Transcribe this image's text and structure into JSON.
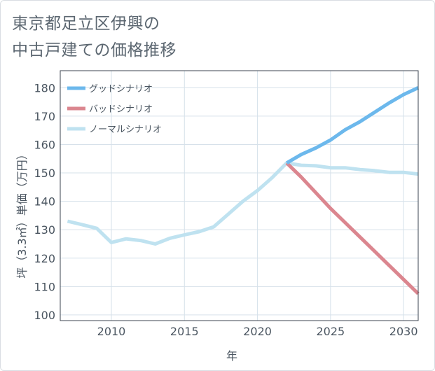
{
  "title_lines": [
    "東京都足立区伊興の",
    "中古戸建ての価格推移"
  ],
  "colors": {
    "good": "#6cb8ec",
    "bad": "#db868f",
    "normal": "#bfe2f0"
  },
  "chart_data": {
    "type": "line",
    "title": "東京都足立区伊興の中古戸建ての価格推移",
    "xlabel": "年",
    "ylabel": "坪（3.3㎡）単価（万円）",
    "xlim": [
      2006.5,
      2031
    ],
    "ylim": [
      98,
      186
    ],
    "xticks": [
      2010,
      2015,
      2020,
      2025,
      2030
    ],
    "yticks": [
      100,
      110,
      120,
      130,
      140,
      150,
      160,
      170,
      180
    ],
    "legend_position": "top-left",
    "series": [
      {
        "name": "グッドシナリオ",
        "key": "good",
        "x": [
          2022,
          2023,
          2024,
          2025,
          2026,
          2027,
          2028,
          2029,
          2030,
          2031
        ],
        "y": [
          153.5,
          156.5,
          158.8,
          161.6,
          165.2,
          168.0,
          171.3,
          174.6,
          177.6,
          180.0
        ]
      },
      {
        "name": "バッドシナリオ",
        "key": "bad",
        "x": [
          2022,
          2023,
          2024,
          2025,
          2026,
          2027,
          2028,
          2029,
          2030,
          2031
        ],
        "y": [
          153.5,
          148.5,
          143.0,
          137.5,
          132.5,
          127.5,
          122.5,
          117.5,
          112.5,
          107.5
        ]
      },
      {
        "name": "ノーマルシナリオ",
        "key": "normal",
        "x": [
          2007,
          2008,
          2009,
          2010,
          2011,
          2012,
          2013,
          2014,
          2015,
          2016,
          2017,
          2018,
          2019,
          2020,
          2021,
          2022,
          2023,
          2024,
          2025,
          2026,
          2027,
          2028,
          2029,
          2030,
          2031
        ],
        "y": [
          133.0,
          131.8,
          130.5,
          125.5,
          126.8,
          126.2,
          125.0,
          127.0,
          128.2,
          129.3,
          131.0,
          135.5,
          140.0,
          143.8,
          148.3,
          153.5,
          152.7,
          152.5,
          151.8,
          151.8,
          151.2,
          150.8,
          150.2,
          150.2,
          149.6
        ]
      }
    ]
  }
}
